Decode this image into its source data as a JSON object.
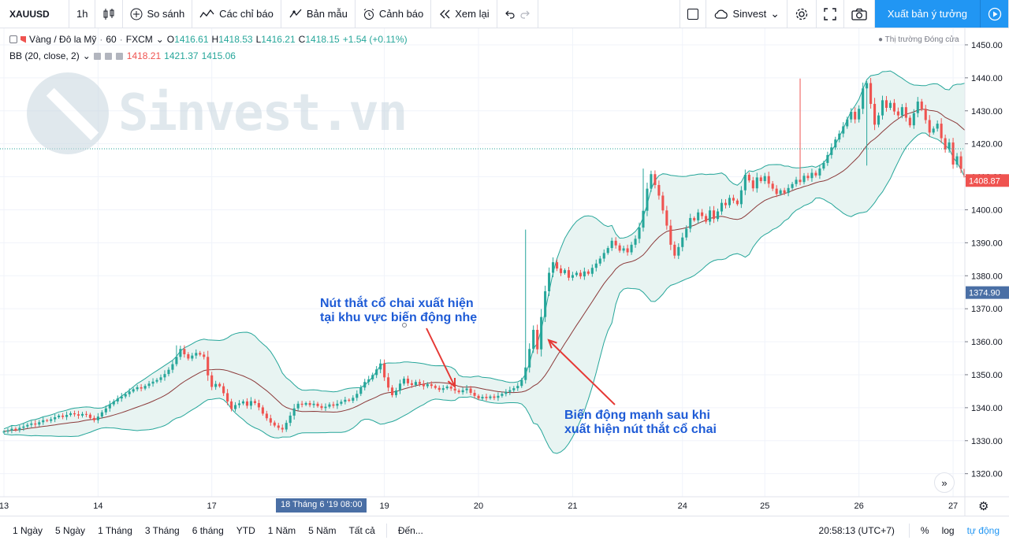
{
  "toolbar": {
    "symbol": "XAUUSD",
    "interval": "1h",
    "compare": "So sánh",
    "indicators": "Các chỉ báo",
    "templates": "Bản mẫu",
    "alerts": "Cảnh báo",
    "replay": "Xem lại",
    "account": "Sinvest",
    "publish": "Xuất bản ý tưởng",
    "icons": {
      "bars": "candlestick-icon",
      "compare": "plus-circle-icon",
      "indicators": "function-icon",
      "templates": "template-icon",
      "alerts": "alarm-clock-icon",
      "replay": "rewind-icon",
      "undo": "undo-icon",
      "redo": "redo-icon",
      "layout": "square-icon",
      "cloud": "cloud-icon",
      "settings": "gear-icon",
      "fullscreen": "fullscreen-icon",
      "snapshot": "camera-icon",
      "play": "play-icon"
    }
  },
  "legend": {
    "instrument": "Vàng / Đô la Mỹ",
    "interval": "60",
    "source": "FXCM",
    "o_label": "O",
    "o": "1416.61",
    "h_label": "H",
    "h": "1418.53",
    "l_label": "L",
    "l": "1416.21",
    "c_label": "C",
    "c": "1418.15",
    "change": "+1.54 (+0.11%)",
    "bb_label": "BB (20, close, 2)",
    "bb_basis": "1418.21",
    "bb_upper": "1421.37",
    "bb_lower": "1415.06",
    "market_status": "Thị trường Đóng cửa"
  },
  "watermark": "Sinvest.vn",
  "annotations": [
    {
      "line1": "Nút thắt cổ chai xuất hiện",
      "line2": "tại khu vực biến động nhẹ"
    },
    {
      "line1": "Biến động mạnh sau khi",
      "line2": "xuất hiện nút thắt cổ chai"
    }
  ],
  "time_axis": {
    "crosshair_label": "18 Tháng 6 '19   08:00"
  },
  "bottom": {
    "ranges": [
      "1 Ngày",
      "5 Ngày",
      "1 Tháng",
      "3 Tháng",
      "6 tháng",
      "YTD",
      "1 Năm",
      "5 Năm",
      "Tất cả"
    ],
    "goto": "Đến...",
    "clock": "20:58:13 (UTC+7)",
    "percent": "%",
    "log": "log",
    "auto": "tự động"
  },
  "colors": {
    "up": "#26a69a",
    "down": "#ef5350",
    "bands": "#26a69a",
    "basis": "#8b3a3a",
    "fill": "#e8f4f2",
    "accent": "#2196f3"
  },
  "chart_data": {
    "type": "candlestick",
    "y_range": [
      1313,
      1455
    ],
    "y_ticks": [
      1320,
      1330,
      1340,
      1350,
      1360,
      1370,
      1380,
      1390,
      1400,
      1410,
      1420,
      1430,
      1440,
      1450
    ],
    "x_labels": [
      {
        "text": "13",
        "t": 0
      },
      {
        "text": "14",
        "t": 24
      },
      {
        "text": "17",
        "t": 53
      },
      {
        "text": "19",
        "t": 97
      },
      {
        "text": "20",
        "t": 121
      },
      {
        "text": "21",
        "t": 145
      },
      {
        "text": "24",
        "t": 173
      },
      {
        "text": "25",
        "t": 194
      },
      {
        "text": "26",
        "t": 218
      },
      {
        "text": "27",
        "t": 242
      }
    ],
    "t_range": [
      -1,
      245
    ],
    "last_price": "1408.87",
    "horizontal_line_price": "1374.90",
    "dotted_line_price": 1418.5,
    "series": {
      "close": [
        1332.8,
        1333.1,
        1333.6,
        1333.2,
        1333.9,
        1334.3,
        1334.8,
        1335.2,
        1334.9,
        1335.6,
        1336.2,
        1336.0,
        1336.5,
        1337.1,
        1337.6,
        1337.2,
        1337.8,
        1338.3,
        1338.0,
        1337.6,
        1338.1,
        1337.9,
        1336.9,
        1336.2,
        1337.3,
        1338.6,
        1339.8,
        1341.0,
        1341.9,
        1342.8,
        1343.4,
        1344.1,
        1344.9,
        1345.6,
        1346.2,
        1345.8,
        1346.6,
        1347.3,
        1347.9,
        1348.4,
        1349.2,
        1350.2,
        1351.5,
        1353.2,
        1355.4,
        1357.8,
        1356.2,
        1354.9,
        1355.8,
        1356.6,
        1356.1,
        1355.4,
        1349.8,
        1346.3,
        1347.2,
        1346.5,
        1344.4,
        1341.9,
        1339.6,
        1340.8,
        1341.3,
        1341.9,
        1340.6,
        1342.0,
        1341.4,
        1340.1,
        1338.2,
        1336.8,
        1335.5,
        1334.6,
        1333.9,
        1333.4,
        1335.4,
        1337.6,
        1339.8,
        1341.2,
        1340.9,
        1341.4,
        1340.8,
        1341.2,
        1340.5,
        1339.9,
        1340.3,
        1341.0,
        1340.6,
        1341.2,
        1341.8,
        1342.4,
        1342.1,
        1343.0,
        1344.2,
        1346.1,
        1347.8,
        1348.6,
        1349.9,
        1351.6,
        1353.4,
        1349.2,
        1346.1,
        1343.8,
        1345.2,
        1347.3,
        1348.8,
        1347.4,
        1346.9,
        1347.8,
        1347.2,
        1346.5,
        1347.1,
        1346.6,
        1346.0,
        1345.4,
        1345.9,
        1346.4,
        1345.8,
        1345.2,
        1344.7,
        1345.3,
        1345.8,
        1344.5,
        1343.6,
        1342.8,
        1343.3,
        1342.9,
        1343.4,
        1343.0,
        1343.6,
        1344.2,
        1344.8,
        1345.3,
        1345.9,
        1346.6,
        1348.4,
        1352.2,
        1357.8,
        1363.6,
        1357.7,
        1367.5,
        1375.3,
        1380.9,
        1384.1,
        1382.2,
        1380.8,
        1381.7,
        1379.4,
        1380.2,
        1380.9,
        1379.8,
        1381.3,
        1380.6,
        1382.4,
        1383.7,
        1385.2,
        1386.9,
        1388.4,
        1390.6,
        1389.2,
        1387.6,
        1388.3,
        1387.1,
        1389.4,
        1391.2,
        1394.6,
        1399.7,
        1406.4,
        1410.8,
        1407.5,
        1404.3,
        1399.8,
        1395.2,
        1389.4,
        1386.1,
        1388.7,
        1391.6,
        1394.3,
        1397.5,
        1396.8,
        1399.2,
        1398.1,
        1396.4,
        1399.8,
        1397.2,
        1399.5,
        1402.1,
        1401.4,
        1403.6,
        1402.8,
        1401.7,
        1405.9,
        1410.6,
        1408.9,
        1406.5,
        1409.8,
        1408.7,
        1410.2,
        1407.9,
        1406.4,
        1404.8,
        1405.9,
        1405.1,
        1406.6,
        1407.8,
        1409.1,
        1408.4,
        1410.3,
        1409.6,
        1411.2,
        1410.4,
        1412.5,
        1414.2,
        1416.6,
        1418.9,
        1421.3,
        1423.1,
        1425.3,
        1427.4,
        1429.7,
        1427.4,
        1430.6,
        1436.8,
        1438.4,
        1432.1,
        1425.8,
        1428.6,
        1433.2,
        1430.9,
        1432.4,
        1429.8,
        1428.6,
        1431.1,
        1427.9,
        1425.6,
        1429.3,
        1432.8,
        1430.6,
        1427.2,
        1423.4,
        1424.6,
        1426.1,
        1421.7,
        1418.3,
        1420.4,
        1413.7,
        1416.2,
        1412.4,
        1409.8,
        1411.6,
        1406.3,
        1405.1,
        1408.4,
        1407.6,
        1403.8,
        1407.2,
        1408.9,
        1405.4,
        1410.3,
        1411.8,
        1408.7,
        1404.9,
        1408.2,
        1413.6,
        1412.4,
        1410.7,
        1409.3,
        1408.9
      ],
      "spikes": [
        {
          "t": 133,
          "high": 1394.0
        },
        {
          "t": 163,
          "high": 1412.5
        },
        {
          "t": 220,
          "low": 1413.4
        },
        {
          "t": 203,
          "high": 1439.8
        },
        {
          "t": 44,
          "high": 1358.9
        }
      ]
    }
  }
}
